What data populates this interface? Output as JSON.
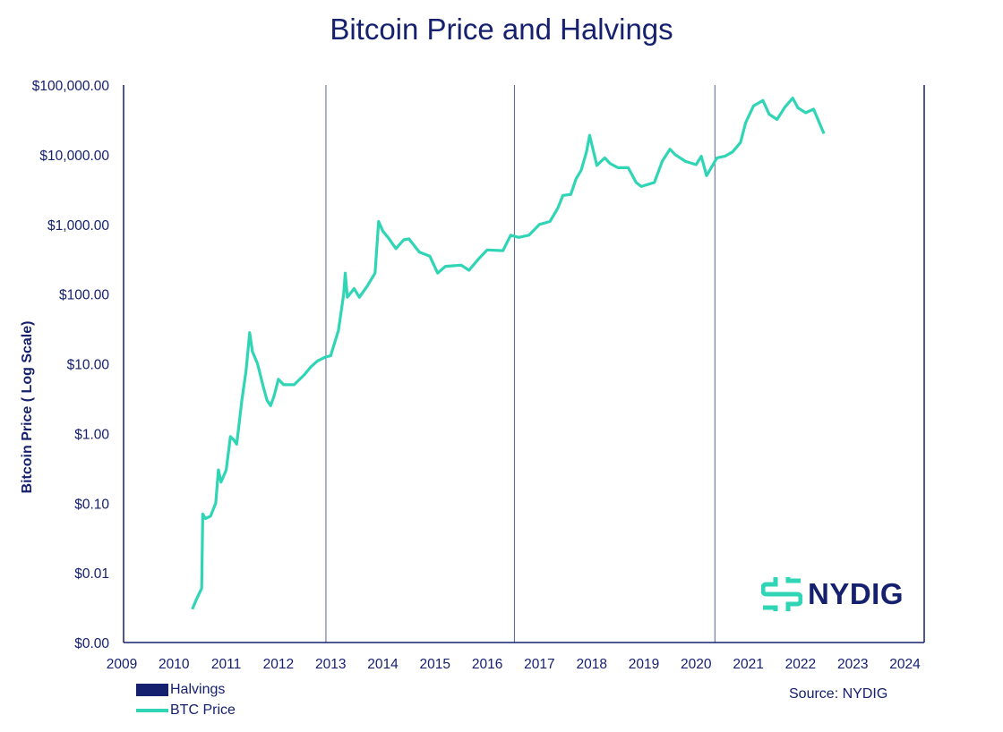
{
  "chart_data": {
    "type": "line",
    "title": "Bitcoin Price and Halvings",
    "ylabel": "Bitcoin Price ( Log Scale)",
    "xlabel": "",
    "yscale": "log",
    "ylim": [
      0.001,
      100000
    ],
    "xlim": [
      2009,
      2024.37
    ],
    "y_ticks": [
      {
        "value": 100000,
        "label": "$100,000.00"
      },
      {
        "value": 10000,
        "label": "$10,000.00"
      },
      {
        "value": 1000,
        "label": "$1,000.00"
      },
      {
        "value": 100,
        "label": "$100.00"
      },
      {
        "value": 10,
        "label": "$10.00"
      },
      {
        "value": 1,
        "label": "$1.00"
      },
      {
        "value": 0.1,
        "label": "$0.10"
      },
      {
        "value": 0.01,
        "label": "$0.01"
      },
      {
        "value": 0.001,
        "label": "$0.00"
      }
    ],
    "x_ticks": [
      "2009",
      "2010",
      "2011",
      "2012",
      "2013",
      "2014",
      "2015",
      "2016",
      "2017",
      "2018",
      "2019",
      "2020",
      "2021",
      "2022",
      "2023",
      "2024"
    ],
    "grid": false,
    "legend_placement": "bottom-left",
    "halvings": {
      "name": "Halvings",
      "color": "#15206f",
      "dates": [
        2012.91,
        2016.52,
        2020.36
      ]
    },
    "series": [
      {
        "name": "BTC Price",
        "color": "#2fd5b5",
        "x": [
          2010.35,
          2010.42,
          2010.48,
          2010.53,
          2010.55,
          2010.6,
          2010.7,
          2010.8,
          2010.85,
          2010.9,
          2011.0,
          2011.08,
          2011.15,
          2011.2,
          2011.3,
          2011.38,
          2011.45,
          2011.5,
          2011.6,
          2011.7,
          2011.78,
          2011.85,
          2011.92,
          2012.0,
          2012.1,
          2012.3,
          2012.5,
          2012.62,
          2012.75,
          2012.9,
          2013.0,
          2013.15,
          2013.25,
          2013.28,
          2013.32,
          2013.45,
          2013.55,
          2013.7,
          2013.85,
          2013.92,
          2014.0,
          2014.1,
          2014.25,
          2014.4,
          2014.5,
          2014.7,
          2014.9,
          2015.05,
          2015.2,
          2015.5,
          2015.65,
          2015.85,
          2016.0,
          2016.3,
          2016.45,
          2016.6,
          2016.8,
          2017.0,
          2017.2,
          2017.35,
          2017.45,
          2017.6,
          2017.7,
          2017.8,
          2017.9,
          2017.96,
          2018.05,
          2018.1,
          2018.25,
          2018.35,
          2018.5,
          2018.7,
          2018.85,
          2018.95,
          2019.2,
          2019.35,
          2019.5,
          2019.6,
          2019.8,
          2020.0,
          2020.1,
          2020.2,
          2020.4,
          2020.55,
          2020.7,
          2020.85,
          2020.95,
          2021.1,
          2021.28,
          2021.4,
          2021.55,
          2021.7,
          2021.85,
          2021.95,
          2022.1,
          2022.25,
          2022.35,
          2022.45
        ],
        "values": [
          0.003,
          0.004,
          0.005,
          0.006,
          0.07,
          0.06,
          0.065,
          0.1,
          0.3,
          0.2,
          0.3,
          0.9,
          0.8,
          0.7,
          3,
          8,
          28,
          15,
          10,
          5,
          3,
          2.5,
          3.5,
          6,
          5,
          5,
          7,
          9,
          11,
          12.5,
          13,
          30,
          100,
          200,
          90,
          120,
          90,
          130,
          200,
          1100,
          800,
          650,
          450,
          600,
          620,
          400,
          350,
          200,
          250,
          260,
          220,
          330,
          430,
          420,
          700,
          650,
          700,
          1000,
          1100,
          1700,
          2600,
          2700,
          4500,
          6000,
          11000,
          19000,
          10000,
          7000,
          9000,
          7500,
          6500,
          6500,
          4000,
          3500,
          4000,
          8000,
          12000,
          10000,
          8000,
          7200,
          9500,
          5000,
          9000,
          9500,
          11000,
          15000,
          29000,
          50000,
          60000,
          38000,
          32000,
          48000,
          65000,
          47000,
          40000,
          45000,
          30000,
          20000
        ]
      }
    ]
  },
  "legend": {
    "halvings": "Halvings",
    "btc_price": "BTC Price"
  },
  "source": "Source: NYDIG",
  "logo": {
    "text": "NYDIG",
    "icon": "nydig-logo-icon"
  }
}
